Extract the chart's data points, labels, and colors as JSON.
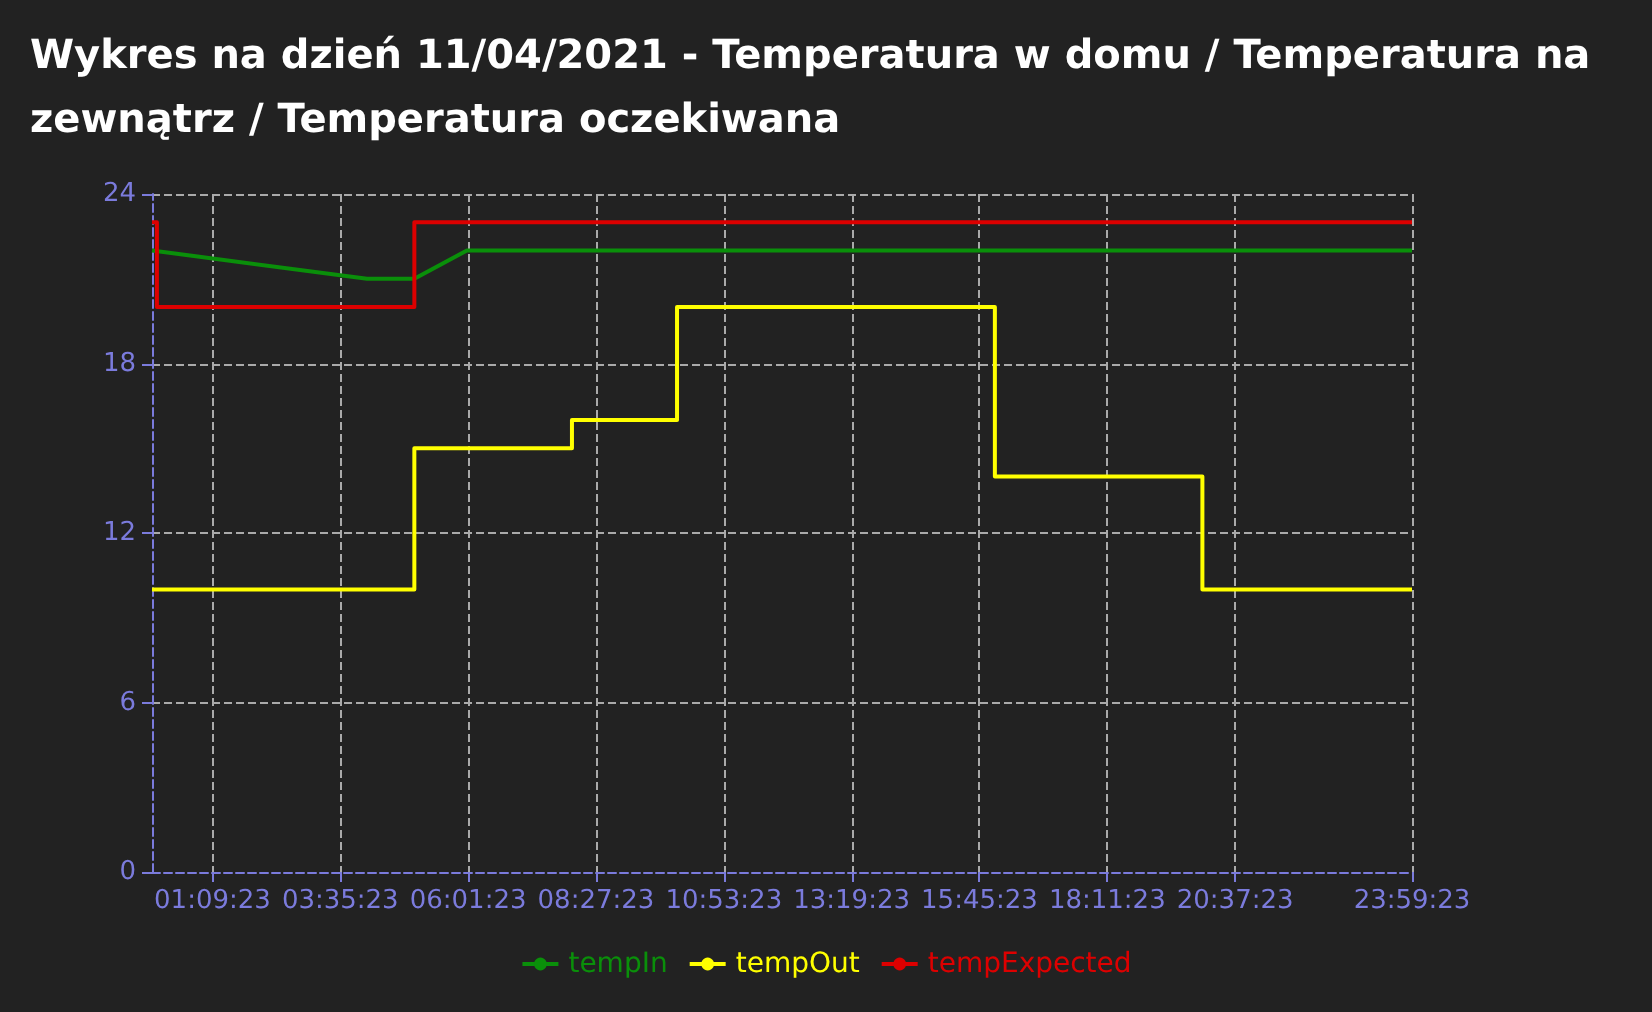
{
  "chart_data": {
    "type": "line",
    "title": "Wykres na dzień 11/04/2021 - Temperatura w domu / Temperatura na zewnątrz / Temperatura oczekiwana",
    "series": [
      {
        "name": "tempIn",
        "color": "#0a8f0a",
        "x": [
          0.0064,
          4.1,
          5.0,
          6.0,
          23.9897
        ],
        "values": [
          22,
          21,
          21,
          22,
          22
        ]
      },
      {
        "name": "tempOut",
        "type": "step",
        "color": "#ffff00",
        "x": [
          0.0064,
          5.0,
          8.0,
          10.0,
          16.05,
          20.0,
          23.9897
        ],
        "values": [
          10,
          15,
          16,
          20,
          14,
          10,
          10
        ]
      },
      {
        "name": "tempExpected",
        "type": "step",
        "color": "#dd0000",
        "x": [
          0.0064,
          0.1,
          5.0,
          23.9897
        ],
        "values": [
          23,
          20,
          23,
          23
        ]
      }
    ],
    "xlim": [
      0.0064,
      23.9897
    ],
    "xticks": [
      {
        "value": 1.1564,
        "label": "01:09:23"
      },
      {
        "value": 3.5897,
        "label": "03:35:23"
      },
      {
        "value": 6.0231,
        "label": "06:01:23"
      },
      {
        "value": 8.4564,
        "label": "08:27:23"
      },
      {
        "value": 10.8897,
        "label": "10:53:23"
      },
      {
        "value": 13.3231,
        "label": "13:19:23"
      },
      {
        "value": 15.7564,
        "label": "15:45:23"
      },
      {
        "value": 18.1897,
        "label": "18:11:23"
      },
      {
        "value": 20.6231,
        "label": "20:37:23"
      },
      {
        "value": 23.9897,
        "label": "23:59:23"
      }
    ],
    "ylim": [
      0,
      24
    ],
    "yticks": [
      0,
      6,
      12,
      18,
      24
    ],
    "grid": true,
    "legend": "bottom",
    "marker": "none",
    "line_style": "solid"
  }
}
